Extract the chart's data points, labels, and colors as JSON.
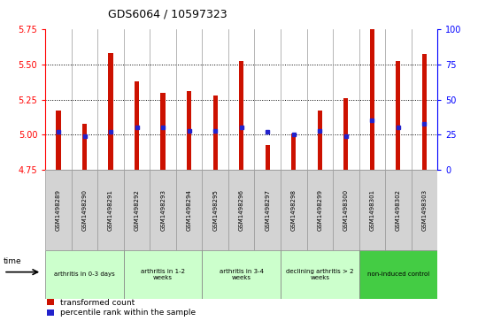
{
  "title": "GDS6064 / 10597323",
  "samples": [
    "GSM1498289",
    "GSM1498290",
    "GSM1498291",
    "GSM1498292",
    "GSM1498293",
    "GSM1498294",
    "GSM1498295",
    "GSM1498296",
    "GSM1498297",
    "GSM1498298",
    "GSM1498299",
    "GSM1498300",
    "GSM1498301",
    "GSM1498302",
    "GSM1498303"
  ],
  "transformed_count": [
    5.17,
    5.08,
    5.58,
    5.38,
    5.3,
    5.31,
    5.28,
    5.52,
    4.93,
    5.01,
    5.17,
    5.26,
    5.75,
    5.52,
    5.57
  ],
  "percentile_rank": [
    27,
    24,
    27,
    30,
    30,
    28,
    28,
    30,
    27,
    25,
    28,
    24,
    35,
    30,
    33
  ],
  "ylim_left": [
    4.75,
    5.75
  ],
  "ylim_right": [
    0,
    100
  ],
  "yticks_left": [
    4.75,
    5.0,
    5.25,
    5.5,
    5.75
  ],
  "yticks_right": [
    0,
    25,
    50,
    75,
    100
  ],
  "bar_color": "#cc1100",
  "dot_color": "#2222cc",
  "background_color": "#ffffff",
  "groups": [
    {
      "label": "arthritis in 0-3 days",
      "start": 0,
      "end": 3,
      "color": "#ccffcc"
    },
    {
      "label": "arthritis in 1-2\nweeks",
      "start": 3,
      "end": 6,
      "color": "#ccffcc"
    },
    {
      "label": "arthritis in 3-4\nweeks",
      "start": 6,
      "end": 9,
      "color": "#ccffcc"
    },
    {
      "label": "declining arthritis > 2\nweeks",
      "start": 9,
      "end": 12,
      "color": "#ccffcc"
    },
    {
      "label": "non-induced control",
      "start": 12,
      "end": 15,
      "color": "#44cc44"
    }
  ],
  "bar_bottom": 4.75,
  "legend_labels": [
    "transformed count",
    "percentile rank within the sample"
  ],
  "legend_colors": [
    "#cc1100",
    "#2222cc"
  ],
  "cell_color": "#d3d3d3",
  "cell_edge_color": "#999999"
}
